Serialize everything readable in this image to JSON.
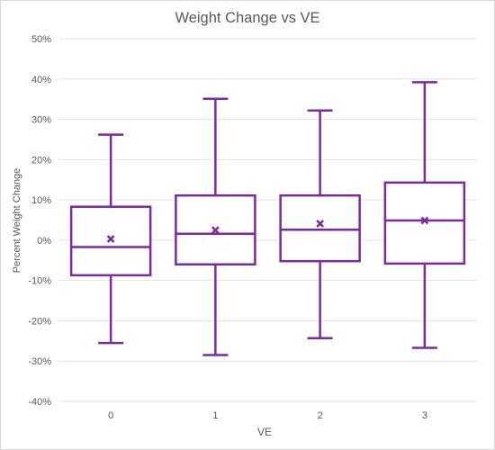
{
  "chart_data": {
    "type": "box",
    "title": "Weight Change vs VE",
    "xlabel": "VE",
    "ylabel": "Percent Weight Change",
    "categories": [
      "0",
      "1",
      "2",
      "3"
    ],
    "ylim": [
      -40,
      50
    ],
    "ytick_values": [
      -40,
      -30,
      -20,
      -10,
      0,
      10,
      20,
      30,
      40,
      50
    ],
    "ytick_labels": [
      "-40%",
      "-30%",
      "-20%",
      "-10%",
      "0%",
      "10%",
      "20%",
      "30%",
      "40%",
      "50%"
    ],
    "grid": true,
    "legend": "none",
    "series": [
      {
        "boxes": [
          {
            "category": "0",
            "min": -25.5,
            "q1": -8.7,
            "median": -1.7,
            "q3": 8.3,
            "max": 26.2,
            "mean": 0.3
          },
          {
            "category": "1",
            "min": -28.5,
            "q1": -6.0,
            "median": 1.6,
            "q3": 11.1,
            "max": 35.1,
            "mean": 2.5
          },
          {
            "category": "2",
            "min": -24.3,
            "q1": -5.2,
            "median": 2.6,
            "q3": 11.1,
            "max": 32.2,
            "mean": 4.1
          },
          {
            "category": "3",
            "min": -26.7,
            "q1": -5.8,
            "median": 4.9,
            "q3": 14.3,
            "max": 39.2,
            "mean": 4.9
          }
        ]
      }
    ],
    "colors": {
      "box": "#7b2aa3",
      "grid": "#e3e3e3",
      "axis": "#bfbfbf"
    }
  }
}
